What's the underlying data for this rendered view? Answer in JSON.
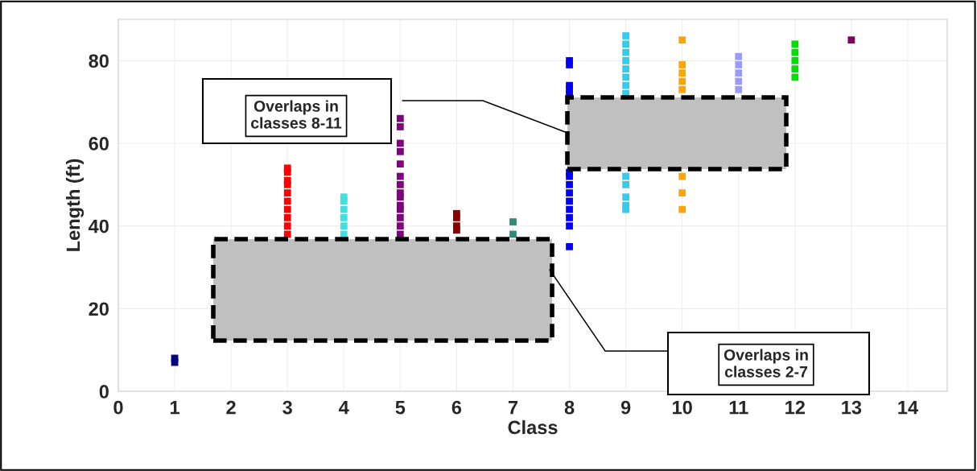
{
  "chart_data": {
    "type": "scatter",
    "xlabel": "Class",
    "ylabel": "Length (ft)",
    "xlim": [
      0,
      14.7
    ],
    "xticks": [
      0,
      1,
      2,
      3,
      4,
      5,
      6,
      7,
      8,
      9,
      10,
      11,
      12,
      13,
      14
    ],
    "ylim": [
      0,
      90
    ],
    "yticks": [
      0,
      20,
      40,
      60,
      80
    ],
    "grid": true,
    "marker": "square",
    "annotations": [
      "Overlaps in classes 8-11",
      "Overlaps in classes 2-7"
    ],
    "series": [
      {
        "color": "#000080",
        "x": [
          1,
          1
        ],
        "values": [
          7,
          8
        ]
      },
      {
        "color": "#ff0000",
        "x": [
          3,
          3,
          3,
          3,
          3,
          3,
          3,
          3,
          3,
          3
        ],
        "values": [
          54,
          53,
          51,
          50,
          48,
          46,
          44,
          42,
          40,
          38
        ]
      },
      {
        "color": "#40e0e0",
        "x": [
          4,
          4,
          4,
          4,
          4,
          4
        ],
        "values": [
          47,
          46,
          44,
          42,
          40,
          38
        ]
      },
      {
        "color": "#800080",
        "x": [
          5,
          5,
          5,
          5,
          5,
          5,
          5,
          5,
          5,
          5,
          5,
          5,
          5,
          5
        ],
        "values": [
          66,
          64,
          60,
          58,
          55,
          52,
          50,
          48,
          47,
          45,
          44,
          42,
          40,
          38
        ]
      },
      {
        "color": "#8b0000",
        "x": [
          6,
          6,
          6,
          6
        ],
        "values": [
          43,
          42,
          40,
          39
        ]
      },
      {
        "color": "#2e8b7a",
        "x": [
          7,
          7
        ],
        "values": [
          41,
          38
        ]
      },
      {
        "color": "#0000ff",
        "x": [
          8,
          8,
          8,
          8,
          8,
          8,
          8,
          8,
          8,
          8,
          8,
          8,
          8,
          8
        ],
        "values": [
          80,
          79,
          74,
          73,
          72,
          53,
          52,
          50,
          48,
          46,
          44,
          42,
          40,
          35
        ]
      },
      {
        "color": "#33ccee",
        "x": [
          9,
          9,
          9,
          9,
          9,
          9,
          9,
          9,
          9,
          9,
          9,
          9,
          9
        ],
        "values": [
          86,
          84,
          82,
          80,
          78,
          76,
          74,
          72,
          52,
          50,
          47,
          45,
          44
        ]
      },
      {
        "color": "#ffa500",
        "x": [
          10,
          10,
          10,
          10,
          10,
          10,
          10,
          10
        ],
        "values": [
          85,
          79,
          77,
          75,
          73,
          52,
          48,
          44
        ]
      },
      {
        "color": "#9999ff",
        "x": [
          11,
          11,
          11,
          11,
          11
        ],
        "values": [
          81,
          79,
          77,
          75,
          73
        ]
      },
      {
        "color": "#00e000",
        "x": [
          12,
          12,
          12,
          12,
          12
        ],
        "values": [
          84,
          82,
          80,
          78,
          76
        ]
      },
      {
        "color": "#800060",
        "x": [
          13
        ],
        "values": [
          85
        ]
      }
    ]
  }
}
